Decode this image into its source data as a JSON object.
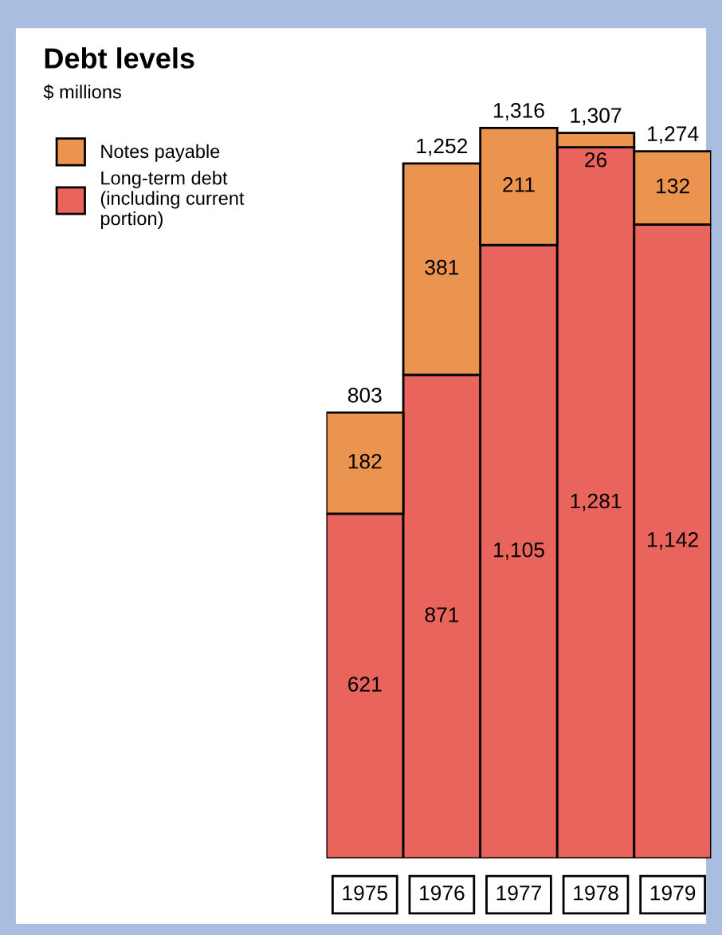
{
  "chart_data": {
    "type": "bar",
    "title": "Debt levels",
    "subtitle": "$ millions",
    "categories": [
      "1975",
      "1976",
      "1977",
      "1978",
      "1979"
    ],
    "stacked": true,
    "legend": "top left",
    "series": [
      {
        "name": "Long-term debt\n(including current\nportion)",
        "color": "#e8645c",
        "values": [
          621,
          871,
          1105,
          1281,
          1142
        ],
        "value_labels": [
          "621",
          "871",
          "1,105",
          "1,281",
          "1,142"
        ]
      },
      {
        "name": "Notes payable",
        "color": "#eb9450",
        "values": [
          182,
          381,
          211,
          26,
          132
        ],
        "value_labels": [
          "182",
          "381",
          "211",
          "26",
          "132"
        ]
      }
    ],
    "totals": [
      "803",
      "1,252",
      "1,316",
      "1,307",
      "1,274"
    ]
  }
}
